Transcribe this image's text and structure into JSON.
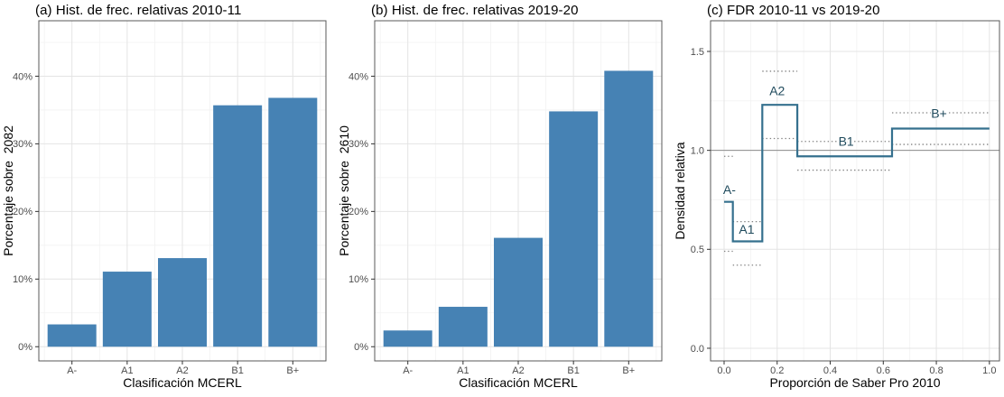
{
  "colors": {
    "bar_fill": "#4682B4",
    "step_line": "#35708E",
    "step_label": "#1F4A5C",
    "ci_dotted": "#828282",
    "reference_line": "#8C8C8C",
    "grid_major": "#E4E4E4",
    "grid_minor": "#F2F2F2",
    "panel_border": "#595959",
    "tick_mark": "#333333",
    "tick_label": "#4D4D4D",
    "axis_title": "#000000",
    "title": "#000000",
    "panel_bg": "#FFFFFF"
  },
  "chart_data": [
    {
      "type": "bar",
      "title": "(a) Hist. de frec. relativas 2010-11",
      "xlabel": "Clasificación MCERL",
      "ylabel": "Porcentaje sobre  2082",
      "categories": [
        "A-",
        "A1",
        "A2",
        "B1",
        "B+"
      ],
      "values": [
        3.3,
        11.1,
        13.1,
        35.7,
        36.8
      ],
      "unit": "%",
      "yticks": [
        0,
        10,
        20,
        30,
        40
      ],
      "ytick_labels": [
        "0%",
        "10%",
        "20%",
        "30%",
        "40%"
      ],
      "ylim": [
        -2.1,
        48.2
      ],
      "grid": true,
      "legend": "none"
    },
    {
      "type": "bar",
      "title": "(b) Hist. de frec. relativas 2019-20",
      "xlabel": "Clasificación MCERL",
      "ylabel": "Porcentaje sobre  2610",
      "categories": [
        "A-",
        "A1",
        "A2",
        "B1",
        "B+"
      ],
      "values": [
        2.4,
        5.9,
        16.1,
        34.8,
        40.8
      ],
      "unit": "%",
      "yticks": [
        0,
        10,
        20,
        30,
        40
      ],
      "ytick_labels": [
        "0%",
        "10%",
        "20%",
        "30%",
        "40%"
      ],
      "ylim": [
        -2.1,
        48.2
      ],
      "grid": true,
      "legend": "none"
    },
    {
      "type": "step",
      "title": "(c) FDR 2010-11 vs 2019-20",
      "xlabel": "Proporción de Saber Pro 2010",
      "ylabel": "Densidad relativa",
      "xticks": [
        0.0,
        0.2,
        0.4,
        0.6,
        0.8,
        1.0
      ],
      "xtick_labels": [
        "0.0",
        "0.2",
        "0.4",
        "0.6",
        "0.8",
        "1.0"
      ],
      "yticks": [
        0.0,
        0.5,
        1.0,
        1.5
      ],
      "ytick_labels": [
        "0.0",
        "0.5",
        "1.0",
        "1.5"
      ],
      "xlim": [
        -0.051,
        1.038
      ],
      "ylim": [
        -0.064,
        1.655
      ],
      "reference_line": 1.0,
      "grid": true,
      "segments": [
        {
          "label": "A-",
          "x0": 0.0,
          "x1": 0.033,
          "y": 0.74,
          "ci_upper": 0.97,
          "ci_lower": 0.49,
          "label_x": 0.02,
          "label_y": 0.8
        },
        {
          "label": "A1",
          "x0": 0.033,
          "x1": 0.144,
          "y": 0.54,
          "ci_upper": 0.64,
          "ci_lower": 0.42,
          "label_x": 0.085,
          "label_y": 0.6
        },
        {
          "label": "A2",
          "x0": 0.144,
          "x1": 0.276,
          "y": 1.23,
          "ci_upper": 1.4,
          "ci_lower": 1.06,
          "label_x": 0.2,
          "label_y": 1.3
        },
        {
          "label": "B1",
          "x0": 0.276,
          "x1": 0.633,
          "y": 0.97,
          "ci_upper": 1.045,
          "ci_lower": 0.9,
          "label_x": 0.46,
          "label_y": 1.045
        },
        {
          "label": "B+",
          "x0": 0.633,
          "x1": 1.0,
          "y": 1.11,
          "ci_upper": 1.19,
          "ci_lower": 1.03,
          "label_x": 0.81,
          "label_y": 1.185
        }
      ]
    }
  ]
}
